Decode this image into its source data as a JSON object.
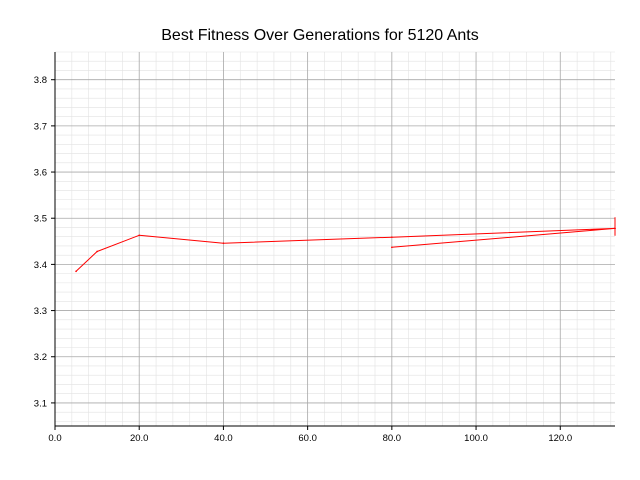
{
  "chart_data": {
    "type": "line",
    "title": "Best Fitness Over Generations for 5120 Ants",
    "xlabel": "",
    "ylabel": "",
    "xlim": [
      0,
      133
    ],
    "ylim": [
      3.05,
      3.86
    ],
    "x_ticks": [
      0,
      20,
      40,
      60,
      80,
      100,
      120
    ],
    "x_tick_labels": [
      "0.0",
      "20.0",
      "40.0",
      "60.0",
      "80.0",
      "100.0",
      "120.0"
    ],
    "y_ticks": [
      3.1,
      3.2,
      3.3,
      3.4,
      3.5,
      3.6,
      3.7,
      3.8
    ],
    "y_tick_labels": [
      "3.1",
      "3.2",
      "3.3",
      "3.4",
      "3.5",
      "3.6",
      "3.7",
      "3.8"
    ],
    "grid": true,
    "legend": "none",
    "series": [
      {
        "color": "#ff0000",
        "x": [
          5,
          10,
          20,
          40,
          80,
          133,
          80,
          133
        ],
        "y": [
          3.385,
          3.428,
          3.463,
          3.446,
          3.459,
          3.478,
          3.437,
          3.478
        ]
      }
    ]
  }
}
